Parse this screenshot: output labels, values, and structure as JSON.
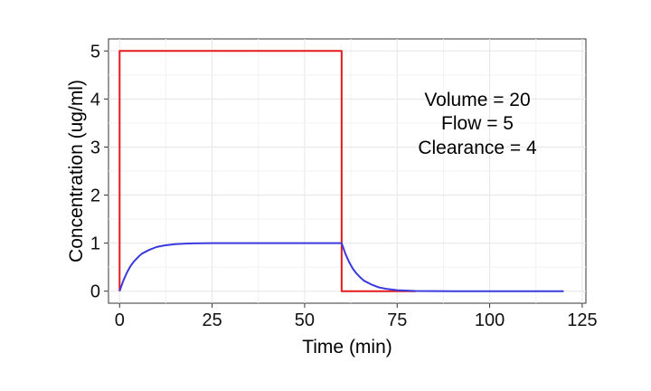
{
  "chart_data": {
    "type": "line",
    "title": "",
    "xlabel": "Time (min)",
    "ylabel": "Concentration (ug/ml)",
    "xlim": [
      -3,
      126
    ],
    "ylim": [
      -0.25,
      5.25
    ],
    "x_ticks": [
      0,
      25,
      50,
      75,
      100,
      125
    ],
    "y_ticks": [
      0,
      1,
      2,
      3,
      4,
      5
    ],
    "grid": true,
    "legend": "none",
    "annotations": [
      "Volume = 20",
      "Flow = 5",
      "Clearance = 4"
    ],
    "series": [
      {
        "color": "#e41a1c",
        "x": [
          0,
          0,
          60,
          60,
          80
        ],
        "y": [
          0,
          5,
          5,
          0,
          0
        ]
      },
      {
        "color": "#3a3adf",
        "x": [
          0,
          1,
          2,
          3,
          4,
          5,
          6,
          8,
          10,
          12,
          15,
          18,
          20,
          25,
          30,
          40,
          50,
          60,
          61,
          62,
          63,
          64,
          65,
          66,
          68,
          70,
          72,
          75,
          80,
          90,
          100,
          110,
          120
        ],
        "y": [
          0,
          0.22,
          0.39,
          0.53,
          0.63,
          0.71,
          0.78,
          0.86,
          0.92,
          0.95,
          0.98,
          0.99,
          0.995,
          1.0,
          1.0,
          1.0,
          1.0,
          1.0,
          0.78,
          0.61,
          0.47,
          0.37,
          0.29,
          0.22,
          0.14,
          0.08,
          0.05,
          0.02,
          0.005,
          0,
          0,
          0,
          0
        ]
      }
    ]
  }
}
